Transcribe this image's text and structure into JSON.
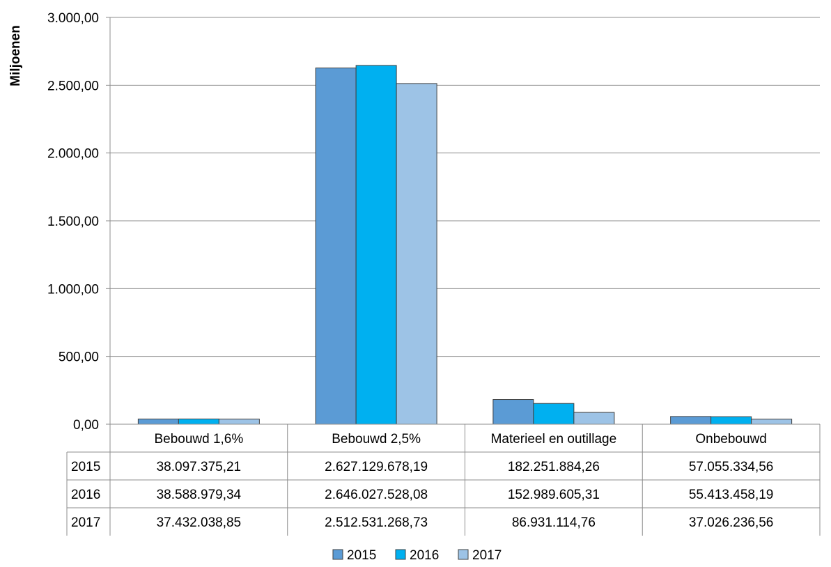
{
  "chart_data": {
    "type": "bar",
    "ylabel": "Miljoenen",
    "ylim": [
      0,
      3000
    ],
    "yticks": [
      0,
      500,
      1000,
      1500,
      2000,
      2500,
      3000
    ],
    "ytick_labels": [
      "0,00",
      "500,00",
      "1.000,00",
      "1.500,00",
      "2.000,00",
      "2.500,00",
      "3.000,00"
    ],
    "grid": true,
    "legend": "bottom",
    "categories": [
      "Bebouwd 1,6%",
      "Bebouwd 2,5%",
      "Materieel en outillage",
      "Onbebouwd"
    ],
    "series": [
      {
        "name": "2015",
        "color": "#5b9bd5",
        "values": [
          38.09737521,
          2627.12967819,
          182.25188426,
          57.05533456
        ],
        "table_values": [
          "38.097.375,21",
          "2.627.129.678,19",
          "182.251.884,26",
          "57.055.334,56"
        ]
      },
      {
        "name": "2016",
        "color": "#00b0f0",
        "values": [
          38.58897934,
          2646.02752808,
          152.98960531,
          55.41345819
        ],
        "table_values": [
          "38.588.979,34",
          "2.646.027.528,08",
          "152.989.605,31",
          "55.413.458,19"
        ]
      },
      {
        "name": "2017",
        "color": "#9dc3e6",
        "values": [
          37.43203885,
          2512.53126873,
          86.93111476,
          37.02623656
        ],
        "table_values": [
          "37.432.038,85",
          "2.512.531.268,73",
          "86.931.114,76",
          "37.026.236,56"
        ]
      }
    ]
  }
}
